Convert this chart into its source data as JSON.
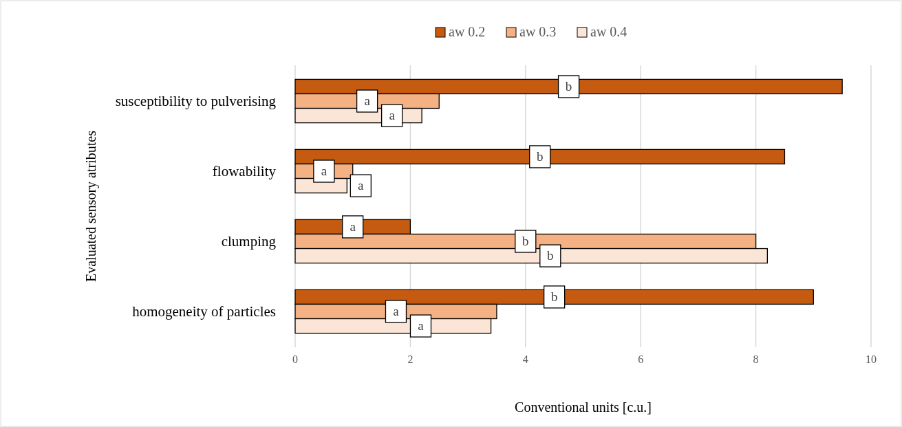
{
  "chart_data": {
    "type": "bar",
    "orientation": "horizontal",
    "xlabel": "Conventional units [c.u.]",
    "ylabel": "Evaluated sensory atributes",
    "categories": [
      "susceptibility to pulverising",
      "flowability",
      "clumping ",
      "homogeneity of particles"
    ],
    "series": [
      {
        "name": "aw 0.2",
        "color": "#c55a11",
        "values": [
          9.5,
          8.5,
          2.0,
          9.0
        ],
        "value_labels": [
          "b",
          "b",
          "a",
          "b"
        ]
      },
      {
        "name": "aw 0.3",
        "color": "#f4b183",
        "values": [
          2.5,
          1.0,
          8.0,
          3.5
        ],
        "value_labels": [
          "a",
          "a",
          "b",
          "a"
        ]
      },
      {
        "name": "aw 0.4",
        "color": "#fbe5d6",
        "values": [
          2.2,
          0.9,
          8.2,
          3.4
        ],
        "value_labels": [
          "a",
          "a",
          "b",
          "a"
        ]
      }
    ],
    "xlim": [
      0,
      10
    ],
    "xticks": [
      0,
      2,
      4,
      6,
      8,
      10
    ],
    "grid": "x",
    "legend": "top"
  }
}
